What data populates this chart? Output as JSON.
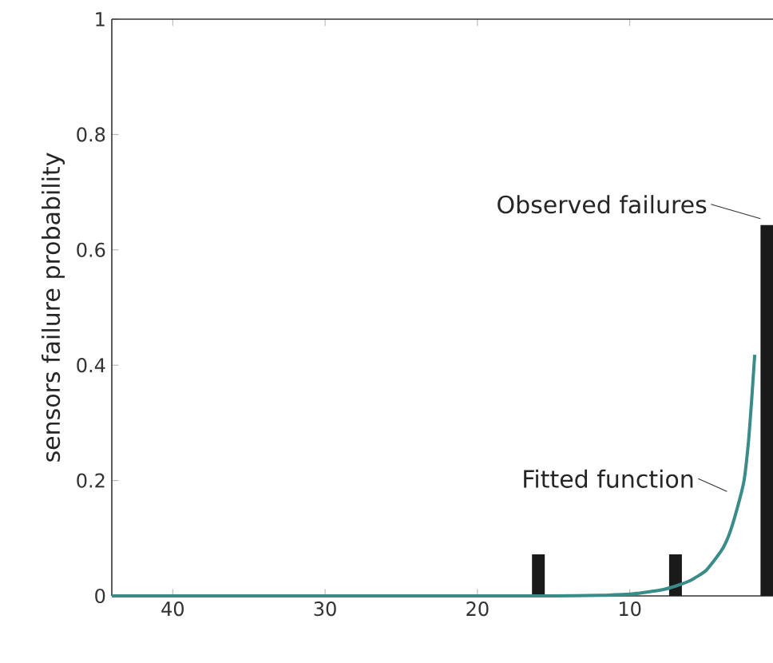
{
  "chart_data": {
    "type": "bar",
    "ylabel": "sensors failure probability",
    "xlim": [
      44,
      0.6
    ],
    "xticks": [
      40,
      30,
      20,
      10
    ],
    "ylim": [
      0,
      1
    ],
    "yticks": [
      0,
      0.2,
      0.4,
      0.6,
      0.8,
      1
    ],
    "series": [
      {
        "color": "#1a1a1a",
        "x": [
          16,
          7,
          1
        ],
        "values": [
          0.072,
          0.072,
          0.643
        ]
      },
      {
        "type": "line",
        "color": "#3a8c88",
        "x": [
          44,
          30,
          20,
          15,
          12,
          10,
          8,
          7,
          6,
          5,
          4,
          3.5,
          3,
          2.5,
          2.2,
          2,
          1.8
        ],
        "values": [
          0,
          0,
          0,
          0,
          0.001,
          0.003,
          0.01,
          0.017,
          0.027,
          0.044,
          0.078,
          0.105,
          0.147,
          0.2,
          0.27,
          0.34,
          0.418
        ]
      }
    ],
    "annotations": [
      {
        "text": "Observed failures",
        "x": 1,
        "y": 0.643
      },
      {
        "text": "Fitted function",
        "x": 3.2,
        "y": 0.17
      }
    ],
    "marker": "none",
    "line_style": "solid"
  }
}
